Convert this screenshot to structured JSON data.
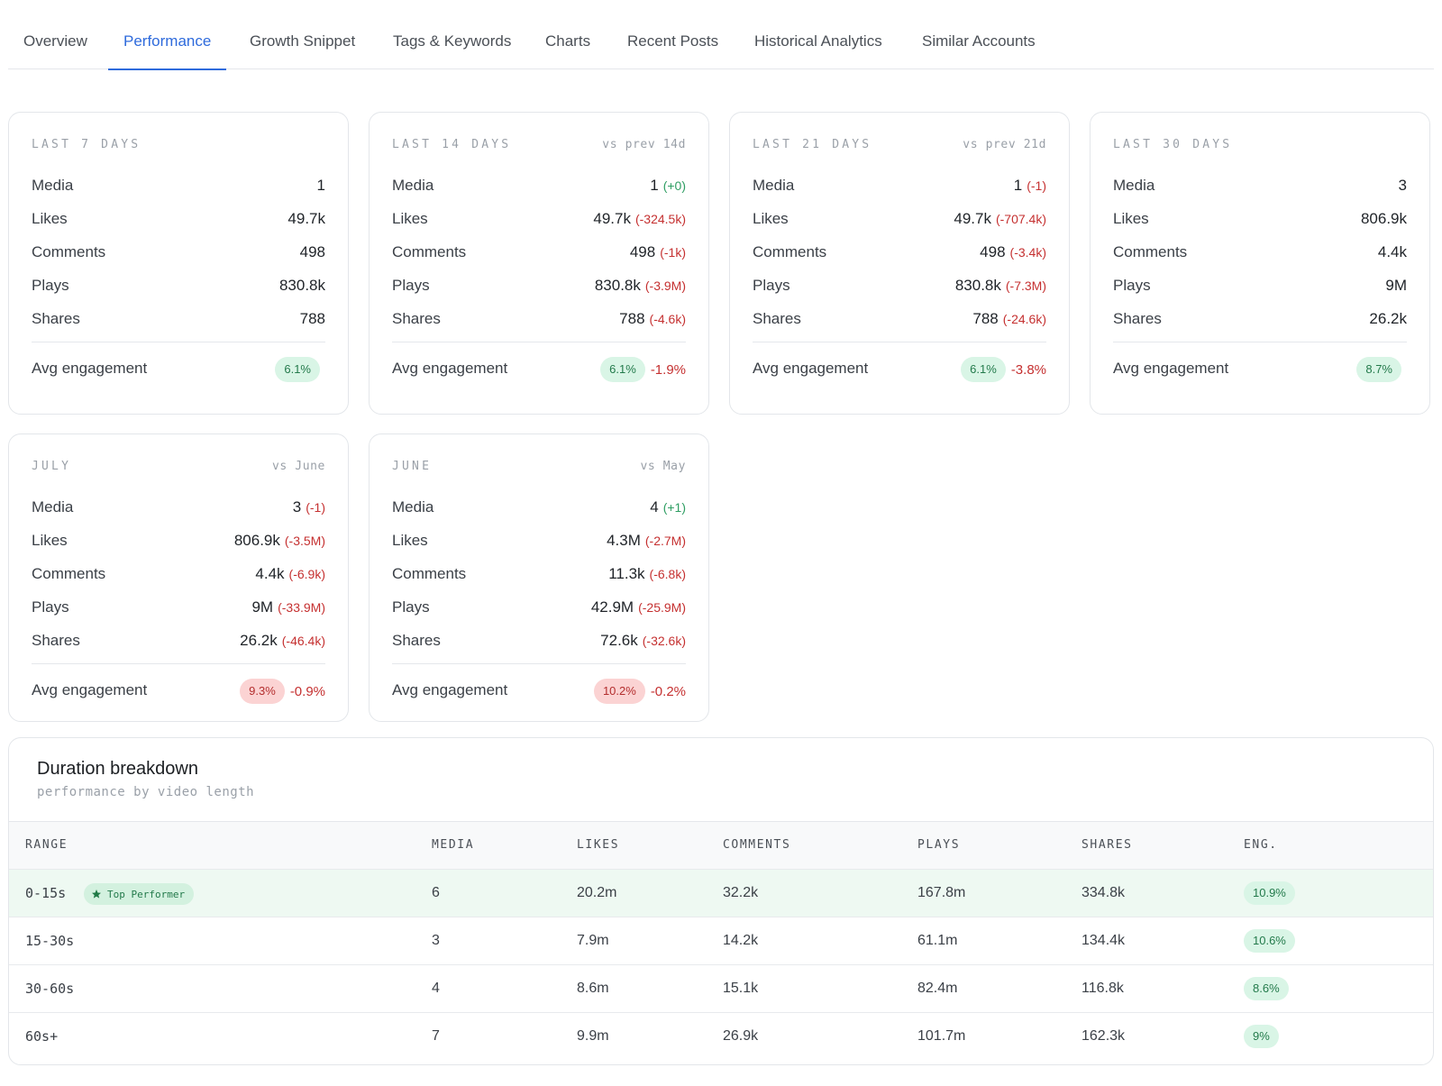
{
  "tabs": [
    "Overview",
    "Performance",
    "Growth Snippet",
    "Tags & Keywords",
    "Charts",
    "Recent Posts",
    "Historical Analytics",
    "Similar Accounts"
  ],
  "active_tab": "Performance",
  "labels": {
    "media": "Media",
    "likes": "Likes",
    "comments": "Comments",
    "plays": "Plays",
    "shares": "Shares",
    "avg_engagement": "Avg engagement"
  },
  "cards": [
    {
      "title": "LAST 7 DAYS",
      "compare": "",
      "rows": [
        {
          "value": "1",
          "delta": ""
        },
        {
          "value": "49.7k",
          "delta": ""
        },
        {
          "value": "498",
          "delta": ""
        },
        {
          "value": "830.8k",
          "delta": ""
        },
        {
          "value": "788",
          "delta": ""
        }
      ],
      "engagement": "6.1%",
      "engagement_delta": "",
      "engagement_color": "green"
    },
    {
      "title": "LAST 14 DAYS",
      "compare": "vs prev 14d",
      "rows": [
        {
          "value": "1",
          "delta": "(+0)",
          "dir": "pos"
        },
        {
          "value": "49.7k",
          "delta": "(-324.5k)",
          "dir": "neg"
        },
        {
          "value": "498",
          "delta": "(-1k)",
          "dir": "neg"
        },
        {
          "value": "830.8k",
          "delta": "(-3.9M)",
          "dir": "neg"
        },
        {
          "value": "788",
          "delta": "(-4.6k)",
          "dir": "neg"
        }
      ],
      "engagement": "6.1%",
      "engagement_delta": "-1.9%",
      "engagement_color": "green"
    },
    {
      "title": "LAST 21 DAYS",
      "compare": "vs prev 21d",
      "rows": [
        {
          "value": "1",
          "delta": "(-1)",
          "dir": "neg"
        },
        {
          "value": "49.7k",
          "delta": "(-707.4k)",
          "dir": "neg"
        },
        {
          "value": "498",
          "delta": "(-3.4k)",
          "dir": "neg"
        },
        {
          "value": "830.8k",
          "delta": "(-7.3M)",
          "dir": "neg"
        },
        {
          "value": "788",
          "delta": "(-24.6k)",
          "dir": "neg"
        }
      ],
      "engagement": "6.1%",
      "engagement_delta": "-3.8%",
      "engagement_color": "green"
    },
    {
      "title": "LAST 30 DAYS",
      "compare": "",
      "rows": [
        {
          "value": "3",
          "delta": ""
        },
        {
          "value": "806.9k",
          "delta": ""
        },
        {
          "value": "4.4k",
          "delta": ""
        },
        {
          "value": "9M",
          "delta": ""
        },
        {
          "value": "26.2k",
          "delta": ""
        }
      ],
      "engagement": "8.7%",
      "engagement_delta": "",
      "engagement_color": "green"
    },
    {
      "title": "JULY",
      "compare": "vs June",
      "rows": [
        {
          "value": "3",
          "delta": "(-1)",
          "dir": "neg"
        },
        {
          "value": "806.9k",
          "delta": "(-3.5M)",
          "dir": "neg"
        },
        {
          "value": "4.4k",
          "delta": "(-6.9k)",
          "dir": "neg"
        },
        {
          "value": "9M",
          "delta": "(-33.9M)",
          "dir": "neg"
        },
        {
          "value": "26.2k",
          "delta": "(-46.4k)",
          "dir": "neg"
        }
      ],
      "engagement": "9.3%",
      "engagement_delta": "-0.9%",
      "engagement_color": "red"
    },
    {
      "title": "JUNE",
      "compare": "vs May",
      "rows": [
        {
          "value": "4",
          "delta": "(+1)",
          "dir": "pos"
        },
        {
          "value": "4.3M",
          "delta": "(-2.7M)",
          "dir": "neg"
        },
        {
          "value": "11.3k",
          "delta": "(-6.8k)",
          "dir": "neg"
        },
        {
          "value": "42.9M",
          "delta": "(-25.9M)",
          "dir": "neg"
        },
        {
          "value": "72.6k",
          "delta": "(-32.6k)",
          "dir": "neg"
        }
      ],
      "engagement": "10.2%",
      "engagement_delta": "-0.2%",
      "engagement_color": "red"
    }
  ],
  "duration": {
    "title": "Duration breakdown",
    "subtitle": "performance by video length",
    "headers": [
      "RANGE",
      "MEDIA",
      "LIKES",
      "COMMENTS",
      "PLAYS",
      "SHARES",
      "ENG."
    ],
    "top_badge": "Top Performer",
    "rows": [
      {
        "range": "0-15s",
        "media": "6",
        "likes": "20.2m",
        "comments": "32.2k",
        "plays": "167.8m",
        "shares": "334.8k",
        "eng": "10.9%",
        "top": true
      },
      {
        "range": "15-30s",
        "media": "3",
        "likes": "7.9m",
        "comments": "14.2k",
        "plays": "61.1m",
        "shares": "134.4k",
        "eng": "10.6%",
        "top": false
      },
      {
        "range": "30-60s",
        "media": "4",
        "likes": "8.6m",
        "comments": "15.1k",
        "plays": "82.4m",
        "shares": "116.8k",
        "eng": "8.6%",
        "top": false
      },
      {
        "range": "60s+",
        "media": "7",
        "likes": "9.9m",
        "comments": "26.9k",
        "plays": "101.7m",
        "shares": "162.3k",
        "eng": "9%",
        "top": false
      }
    ]
  },
  "colors": {
    "accent": "#2f6bdc",
    "negative": "#c53030",
    "positive": "#2f9e63",
    "pill_green": "#d9f5e6",
    "pill_red": "#fbd3d3"
  },
  "icons": {
    "top_badge": "star-icon"
  }
}
